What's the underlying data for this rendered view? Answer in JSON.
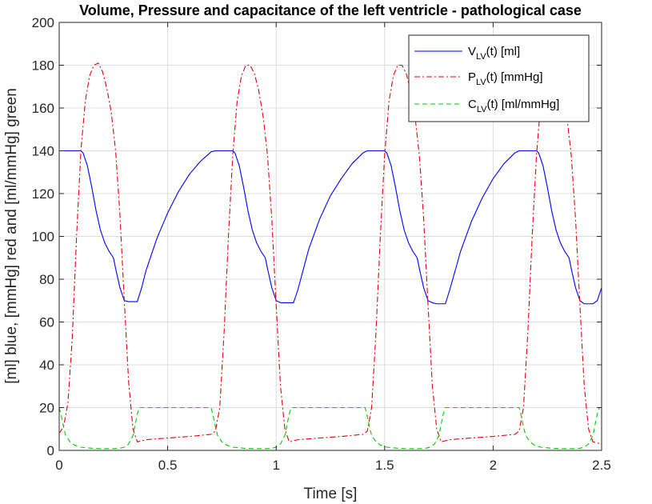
{
  "chart_data": {
    "type": "line",
    "title": "Volume, Pressure and capacitance of the left ventricle - pathological case",
    "xlabel": "Time [s]",
    "ylabel": "[ml] blue, [mmHg] red and [ml/mmHg] green",
    "xlim": [
      0,
      2.5
    ],
    "ylim": [
      0,
      200
    ],
    "xticks": [
      0,
      0.5,
      1,
      1.5,
      2,
      2.5
    ],
    "xtick_labels": [
      "0",
      "0.5",
      "1",
      "1.5",
      "2",
      "2.5"
    ],
    "yticks": [
      0,
      20,
      40,
      60,
      80,
      100,
      120,
      140,
      160,
      180,
      200
    ],
    "ytick_labels": [
      "0",
      "20",
      "40",
      "60",
      "80",
      "100",
      "120",
      "140",
      "160",
      "180",
      "200"
    ],
    "grid": true,
    "legend_position": "top-right",
    "series": [
      {
        "name": "V_LV(t) [ml]",
        "color": "#0000ff",
        "style": "solid",
        "x": [
          0,
          0.05,
          0.1,
          0.11,
          0.13,
          0.15,
          0.17,
          0.19,
          0.21,
          0.23,
          0.25,
          0.26,
          0.28,
          0.3,
          0.32,
          0.34,
          0.36,
          0.38,
          0.4,
          0.45,
          0.5,
          0.55,
          0.6,
          0.65,
          0.7,
          0.72,
          0.8,
          0.81,
          0.83,
          0.85,
          0.87,
          0.89,
          0.91,
          0.93,
          0.95,
          0.96,
          0.98,
          1.0,
          1.02,
          1.04,
          1.06,
          1.08,
          1.1,
          1.15,
          1.2,
          1.25,
          1.3,
          1.35,
          1.4,
          1.42,
          1.5,
          1.51,
          1.53,
          1.55,
          1.57,
          1.59,
          1.61,
          1.63,
          1.65,
          1.66,
          1.68,
          1.7,
          1.72,
          1.74,
          1.76,
          1.78,
          1.8,
          1.85,
          1.9,
          1.95,
          2.0,
          2.05,
          2.1,
          2.12,
          2.2,
          2.21,
          2.23,
          2.25,
          2.27,
          2.29,
          2.31,
          2.33,
          2.35,
          2.36,
          2.38,
          2.4,
          2.42,
          2.44,
          2.46,
          2.48,
          2.5
        ],
        "values": [
          140,
          140,
          140,
          139,
          133,
          123,
          112,
          103,
          97,
          93,
          90,
          85,
          76,
          70,
          69.5,
          69.5,
          69.5,
          76,
          84,
          99,
          111,
          121,
          129,
          135,
          139.5,
          140,
          140,
          139,
          133,
          123,
          112,
          103,
          97,
          93,
          90,
          85,
          76,
          70,
          69,
          69,
          69,
          69,
          75,
          94,
          108,
          119,
          127,
          134,
          139,
          140,
          140,
          139,
          133,
          123,
          112,
          103,
          97,
          93,
          90,
          85,
          76,
          70,
          69,
          68.5,
          68.5,
          68.5,
          75,
          93,
          107,
          118,
          127,
          134,
          139,
          140,
          140,
          139,
          133,
          123,
          112,
          103,
          97,
          93,
          90,
          85,
          76,
          70,
          68.5,
          68.5,
          68.5,
          70,
          76
        ]
      },
      {
        "name": "P_LV(t) [mmHg]",
        "color": "#e8000b",
        "style": "dashdot",
        "x": [
          0,
          0.02,
          0.04,
          0.06,
          0.08,
          0.1,
          0.12,
          0.14,
          0.16,
          0.18,
          0.2,
          0.22,
          0.24,
          0.26,
          0.28,
          0.3,
          0.32,
          0.34,
          0.36,
          0.38,
          0.4,
          0.5,
          0.6,
          0.7,
          0.72,
          0.74,
          0.76,
          0.78,
          0.8,
          0.82,
          0.84,
          0.86,
          0.88,
          0.9,
          0.92,
          0.94,
          0.96,
          0.98,
          1.0,
          1.02,
          1.04,
          1.06,
          1.08,
          1.1,
          1.2,
          1.3,
          1.4,
          1.42,
          1.44,
          1.46,
          1.48,
          1.5,
          1.52,
          1.54,
          1.56,
          1.58,
          1.6,
          1.62,
          1.64,
          1.66,
          1.68,
          1.7,
          1.72,
          1.74,
          1.76,
          1.78,
          1.8,
          1.9,
          2.0,
          2.1,
          2.12,
          2.14,
          2.16,
          2.18,
          2.2,
          2.22,
          2.24,
          2.26,
          2.28,
          2.3,
          2.32,
          2.34,
          2.36,
          2.38,
          2.4,
          2.42,
          2.44,
          2.46,
          2.48,
          2.5
        ],
        "values": [
          8,
          11,
          22,
          52,
          100,
          140,
          163,
          175,
          180,
          181,
          177,
          169,
          158,
          140,
          110,
          70,
          32,
          10,
          4,
          4.5,
          5,
          5.8,
          6.5,
          7.5,
          9,
          20,
          55,
          100,
          138,
          163,
          175,
          180,
          180,
          176,
          168,
          156,
          138,
          108,
          68,
          30,
          10,
          4,
          4.5,
          5,
          5.8,
          6.5,
          7.5,
          9,
          20,
          55,
          100,
          138,
          163,
          175,
          180,
          180,
          176,
          168,
          156,
          138,
          108,
          68,
          30,
          10,
          4,
          4.5,
          5,
          5.8,
          6.5,
          7.5,
          9,
          20,
          55,
          100,
          138,
          163,
          175,
          180,
          180,
          176,
          168,
          156,
          138,
          108,
          68,
          30,
          10,
          4,
          3.5,
          3
        ]
      },
      {
        "name": "C_LV(t) [ml/mmHg]",
        "color": "#00cc00",
        "style": "dashed",
        "x": [
          0,
          0.01,
          0.02,
          0.03,
          0.05,
          0.07,
          0.1,
          0.15,
          0.2,
          0.25,
          0.28,
          0.3,
          0.32,
          0.34,
          0.35,
          0.36,
          0.37,
          0.7,
          0.71,
          0.72,
          0.73,
          0.75,
          0.77,
          0.8,
          0.85,
          0.9,
          0.95,
          0.98,
          1.0,
          1.02,
          1.04,
          1.05,
          1.06,
          1.07,
          1.41,
          1.42,
          1.43,
          1.44,
          1.46,
          1.48,
          1.51,
          1.56,
          1.61,
          1.66,
          1.69,
          1.71,
          1.73,
          1.75,
          1.76,
          1.77,
          1.78,
          2.12,
          2.13,
          2.14,
          2.15,
          2.17,
          2.19,
          2.22,
          2.27,
          2.32,
          2.37,
          2.4,
          2.42,
          2.44,
          2.46,
          2.47,
          2.48,
          2.49,
          2.5
        ],
        "values": [
          20,
          16,
          11,
          7,
          4,
          2.5,
          1.5,
          1,
          0.8,
          0.8,
          1,
          1.5,
          3,
          7,
          12,
          17,
          20,
          20,
          16,
          11,
          7,
          4,
          2.5,
          1.5,
          1,
          0.8,
          0.8,
          1,
          1.5,
          3,
          7,
          12,
          17,
          20,
          20,
          16,
          11,
          7,
          4,
          2.5,
          1.5,
          1,
          0.8,
          0.8,
          1,
          1.5,
          3,
          7,
          12,
          17,
          20,
          20,
          16,
          11,
          7,
          4,
          2.5,
          1.5,
          1,
          0.8,
          0.8,
          1,
          1.5,
          3,
          7,
          12,
          17,
          20,
          20
        ]
      }
    ]
  }
}
